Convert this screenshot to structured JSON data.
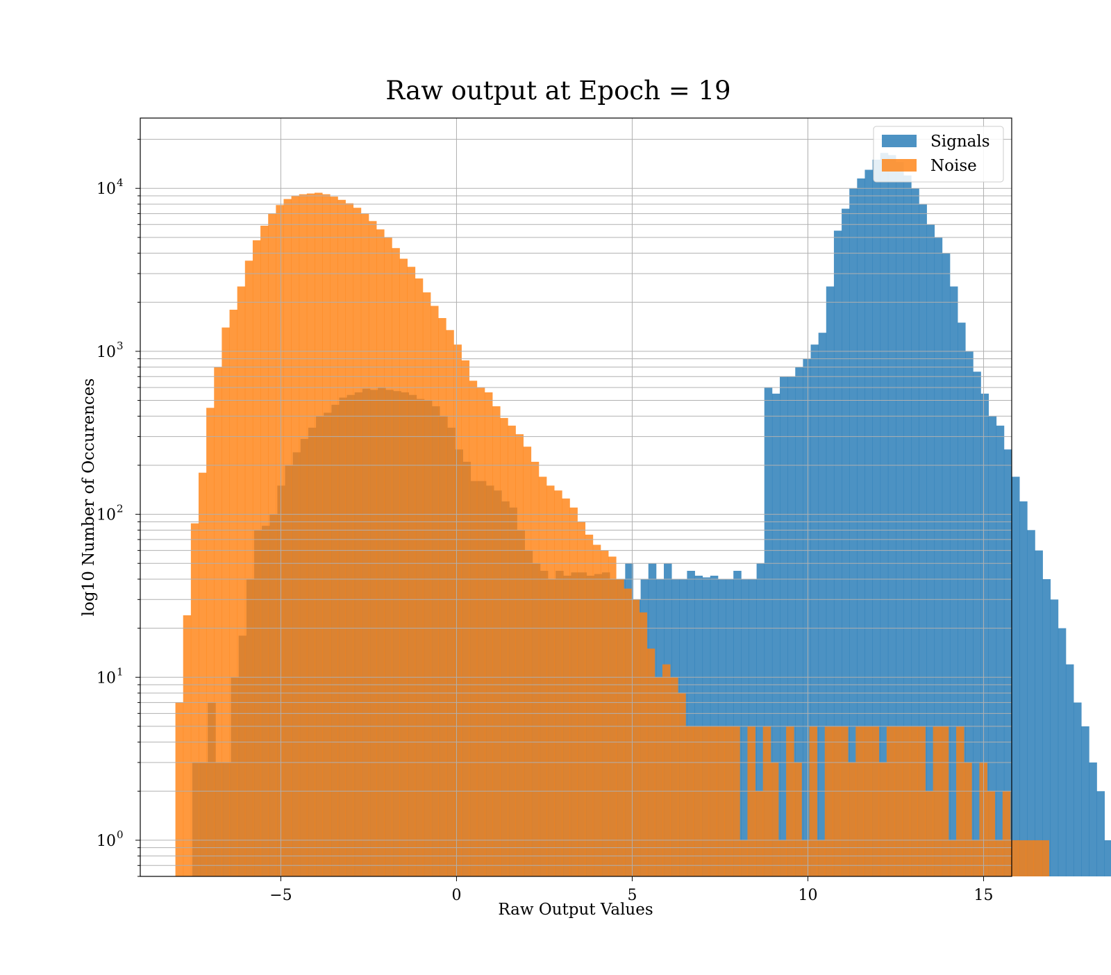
{
  "chart_data": {
    "type": "bar",
    "title": "Raw output at Epoch = 19",
    "xlabel": "Raw Output Values",
    "ylabel": "log10 Number of Occurences",
    "yscale": "log",
    "xlim": [
      -9.0,
      15.8
    ],
    "ylim": [
      0.6,
      27000
    ],
    "bin_width": 0.22,
    "grid": true,
    "legend_position": "top-right",
    "x_ticks": [
      {
        "value": -5,
        "label": "−5"
      },
      {
        "value": 0,
        "label": "0"
      },
      {
        "value": 5,
        "label": "5"
      },
      {
        "value": 10,
        "label": "10"
      },
      {
        "value": 15,
        "label": "15"
      }
    ],
    "y_ticks": [
      {
        "value": 1,
        "base": "10",
        "exp": "0"
      },
      {
        "value": 10,
        "base": "10",
        "exp": "1"
      },
      {
        "value": 100,
        "base": "10",
        "exp": "2"
      },
      {
        "value": 1000,
        "base": "10",
        "exp": "3"
      },
      {
        "value": 10000,
        "base": "10",
        "exp": "4"
      }
    ],
    "series": [
      {
        "name": "Signals",
        "color": "#1f77b4",
        "opacity": 0.8,
        "start": -7.52,
        "counts": [
          3,
          3,
          7,
          3,
          3,
          10,
          18,
          40,
          80,
          85,
          100,
          150,
          200,
          240,
          290,
          340,
          400,
          420,
          470,
          520,
          540,
          560,
          590,
          580,
          600,
          580,
          570,
          560,
          540,
          510,
          500,
          460,
          400,
          340,
          250,
          210,
          160,
          160,
          150,
          140,
          120,
          110,
          80,
          60,
          50,
          45,
          40,
          45,
          42,
          44,
          44,
          42,
          43,
          44,
          40,
          40,
          50,
          30,
          40,
          50,
          40,
          50,
          40,
          40,
          45,
          42,
          41,
          42,
          40,
          40,
          45,
          40,
          40,
          50,
          600,
          550,
          700,
          700,
          800,
          900,
          1100,
          1300,
          2500,
          5500,
          7500,
          10000,
          11500,
          13000,
          15000,
          16500,
          16000,
          14500,
          12000,
          10000,
          8000,
          6000,
          5000,
          4000,
          2500,
          1500,
          1000,
          750,
          550,
          400,
          350,
          250,
          170,
          120,
          80,
          60,
          40,
          30,
          20,
          12,
          7,
          5,
          3,
          2,
          1
        ]
      },
      {
        "name": "Noise",
        "color": "#ff7f0e",
        "opacity": 0.8,
        "start": -8.0,
        "counts": [
          7,
          24,
          88,
          180,
          450,
          800,
          1400,
          1800,
          2500,
          3600,
          4800,
          5900,
          7000,
          7900,
          8600,
          9000,
          9200,
          9300,
          9400,
          9200,
          8900,
          8500,
          8100,
          7600,
          7000,
          6300,
          5600,
          5000,
          4300,
          3700,
          3300,
          2800,
          2300,
          1900,
          1600,
          1350,
          1100,
          880,
          660,
          600,
          560,
          460,
          390,
          350,
          310,
          260,
          210,
          170,
          150,
          140,
          125,
          110,
          90,
          75,
          65,
          60,
          55,
          40,
          35,
          30,
          25,
          15,
          10,
          12,
          10,
          8,
          5,
          5,
          5,
          5,
          5,
          5,
          5,
          1,
          5,
          2,
          5,
          3,
          1,
          5,
          3,
          1,
          5,
          1,
          5,
          5,
          5,
          3,
          5,
          5,
          5,
          3,
          5,
          5,
          5,
          5,
          5,
          2,
          5,
          5,
          1,
          5,
          3,
          1,
          3,
          2,
          1,
          2,
          1,
          1,
          1,
          1,
          1
        ]
      }
    ]
  }
}
